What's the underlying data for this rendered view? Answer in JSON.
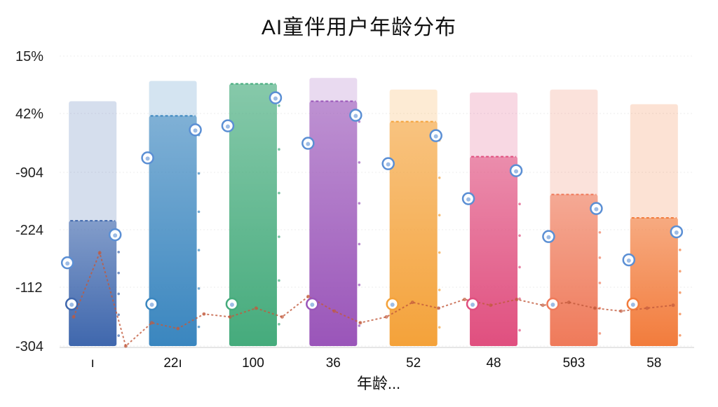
{
  "chart_data": {
    "type": "bar",
    "title": "AI童伴用户年龄分布",
    "xlabel": "年龄...",
    "ylabel": "",
    "y_tick_labels": [
      "15%",
      "42%",
      "-904",
      "-224",
      "-112",
      "-304"
    ],
    "ylim": [
      0,
      100
    ],
    "grid": true,
    "legend": "none",
    "categories": [
      "ı",
      "22ı",
      "100",
      "36",
      "52",
      "48",
      "5θ3",
      "58"
    ],
    "series": [
      {
        "values": [
          84,
          91,
          90,
          92,
          88,
          87,
          88,
          83
        ]
      },
      {
        "values": [
          43,
          79,
          90,
          84,
          77,
          65,
          52,
          44
        ]
      }
    ],
    "trend_line": [
      10,
      32,
      0,
      8,
      6,
      11,
      10,
      13,
      10,
      17,
      12,
      8,
      10,
      15,
      13,
      16,
      14,
      16,
      14,
      15,
      13,
      12,
      13,
      14
    ],
    "colors": {
      "bars": [
        "#3f67ad",
        "#3a86bf",
        "#45ab7c",
        "#9a55b9",
        "#f4a23a",
        "#e04f7f",
        "#ef7a5a",
        "#f27c3c"
      ],
      "marker_ring": "#5b8fd4",
      "trend": "#c25a3c"
    }
  }
}
